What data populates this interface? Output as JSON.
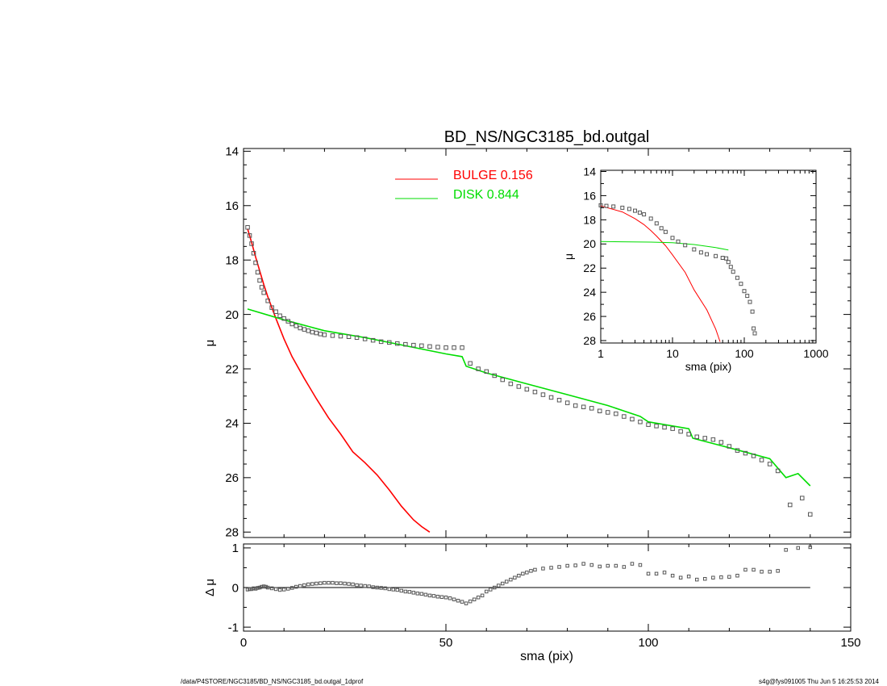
{
  "title": "BD_NS/NGC3185_bd.outgal",
  "footer": {
    "path": "/data/P4STORE/NGC3185/BD_NS/NGC3185_bd.outgal_1dprof",
    "stamp": "s4g@fys091005  Thu Jun  5 16:25:53 2014"
  },
  "colors": {
    "bulge": "#ff0000",
    "disk": "#00dd00",
    "data": "#555555",
    "axes": "#000000"
  },
  "chart_data": [
    {
      "id": "main",
      "type": "line",
      "title": "BD_NS/NGC3185_bd.outgal",
      "ylabel": "μ",
      "xlim": [
        0,
        150
      ],
      "ylim": [
        28.2,
        13.9
      ],
      "y_inverted": true,
      "xticks": [
        0,
        50,
        100,
        150
      ],
      "yticks": [
        14,
        16,
        18,
        20,
        22,
        24,
        26,
        28
      ],
      "legend": {
        "placement": "top-center",
        "entries": [
          {
            "series": "bulge",
            "label": "BULGE  0.156"
          },
          {
            "series": "disk",
            "label": "DISK  0.844"
          }
        ]
      },
      "series": [
        {
          "name": "BULGE",
          "key": "bulge",
          "style": "line",
          "x": [
            1,
            2,
            3,
            4,
            5,
            6,
            8,
            10,
            12,
            15,
            18,
            21,
            24,
            27,
            30,
            33,
            36,
            39,
            42,
            44,
            46
          ],
          "y": [
            16.85,
            17.35,
            17.9,
            18.4,
            18.9,
            19.35,
            20.15,
            20.9,
            21.55,
            22.35,
            23.1,
            23.8,
            24.4,
            25.05,
            25.45,
            25.9,
            26.45,
            27.05,
            27.55,
            27.8,
            28.0
          ]
        },
        {
          "name": "DISK",
          "key": "disk",
          "style": "line",
          "x": [
            1,
            10,
            20,
            30,
            40,
            50,
            54,
            55,
            60,
            70,
            80,
            90,
            98,
            100,
            110,
            111,
            120,
            130,
            134,
            137,
            140
          ],
          "y": [
            19.8,
            20.2,
            20.6,
            20.85,
            21.15,
            21.45,
            21.55,
            21.9,
            22.15,
            22.55,
            22.95,
            23.35,
            23.75,
            23.95,
            24.2,
            24.55,
            24.9,
            25.3,
            26.0,
            25.85,
            26.3
          ]
        },
        {
          "name": "data",
          "key": "data",
          "style": "markers",
          "x": [
            1,
            1.5,
            2,
            2.5,
            3,
            3.5,
            4,
            4.5,
            5,
            6,
            7,
            8,
            9,
            10,
            11,
            12,
            13,
            14,
            15,
            16,
            17,
            18,
            19,
            20,
            22,
            24,
            26,
            28,
            30,
            32,
            34,
            36,
            38,
            40,
            42,
            44,
            46,
            48,
            50,
            52,
            54,
            56,
            58,
            60,
            62,
            64,
            66,
            68,
            70,
            72,
            74,
            76,
            78,
            80,
            82,
            84,
            86,
            88,
            90,
            92,
            94,
            96,
            98,
            100,
            102,
            104,
            106,
            108,
            110,
            112,
            114,
            116,
            118,
            120,
            122,
            124,
            126,
            128,
            130,
            132,
            135,
            138,
            140
          ],
          "y": [
            16.8,
            17.1,
            17.4,
            17.75,
            18.1,
            18.45,
            18.75,
            19.0,
            19.2,
            19.5,
            19.75,
            19.9,
            20.05,
            20.15,
            20.25,
            20.35,
            20.42,
            20.5,
            20.55,
            20.6,
            20.65,
            20.68,
            20.72,
            20.75,
            20.78,
            20.8,
            20.82,
            20.85,
            20.9,
            20.95,
            21.0,
            21.03,
            21.07,
            21.1,
            21.13,
            21.15,
            21.18,
            21.2,
            21.22,
            21.22,
            21.22,
            21.8,
            22.0,
            22.1,
            22.25,
            22.4,
            22.55,
            22.65,
            22.75,
            22.85,
            22.95,
            23.05,
            23.15,
            23.25,
            23.35,
            23.4,
            23.45,
            23.55,
            23.6,
            23.65,
            23.75,
            23.85,
            23.95,
            24.05,
            24.1,
            24.15,
            24.2,
            24.3,
            24.4,
            24.5,
            24.55,
            24.6,
            24.7,
            24.85,
            25.0,
            25.1,
            25.2,
            25.35,
            25.5,
            25.75,
            27.0,
            26.75,
            27.35
          ]
        }
      ]
    },
    {
      "id": "inset",
      "type": "line",
      "xlabel": "sma (pix)",
      "ylabel": "μ",
      "xscale": "log",
      "xlim": [
        1,
        1000
      ],
      "ylim": [
        28.2,
        13.9
      ],
      "y_inverted": true,
      "xticks": [
        1,
        10,
        100,
        1000
      ],
      "yticks": [
        14,
        16,
        18,
        20,
        22,
        24,
        26,
        28
      ],
      "series": [
        {
          "name": "BULGE",
          "key": "bulge",
          "style": "line",
          "x": [
            1,
            2,
            3,
            4,
            5,
            6,
            8,
            10,
            15,
            20,
            30,
            40,
            46
          ],
          "y": [
            16.85,
            17.35,
            17.9,
            18.4,
            18.9,
            19.35,
            20.15,
            20.9,
            22.35,
            23.8,
            25.45,
            27.05,
            28.1
          ]
        },
        {
          "name": "DISK",
          "key": "disk",
          "style": "line",
          "x": [
            1,
            2,
            5,
            10,
            20,
            40,
            60
          ],
          "y": [
            19.8,
            19.82,
            19.85,
            19.9,
            20.05,
            20.3,
            20.5
          ]
        },
        {
          "name": "data",
          "key": "data",
          "style": "markers",
          "x": [
            1,
            1.2,
            1.5,
            2,
            2.5,
            3,
            3.5,
            4,
            5,
            6,
            7,
            8,
            10,
            12,
            15,
            20,
            25,
            30,
            40,
            50,
            56,
            60,
            65,
            70,
            80,
            90,
            100,
            110,
            120,
            130,
            135,
            140
          ],
          "y": [
            16.8,
            16.85,
            16.9,
            17.0,
            17.1,
            17.25,
            17.4,
            17.55,
            17.9,
            18.3,
            18.7,
            19.0,
            19.5,
            19.8,
            20.1,
            20.45,
            20.7,
            20.85,
            21.0,
            21.15,
            21.2,
            21.5,
            21.9,
            22.3,
            22.8,
            23.3,
            23.9,
            24.3,
            24.8,
            25.6,
            27.0,
            27.4
          ]
        }
      ]
    },
    {
      "id": "residual",
      "type": "scatter",
      "xlabel": "sma (pix)",
      "ylabel": "Δ μ",
      "xlim": [
        0,
        150
      ],
      "ylim": [
        -1.1,
        1.1
      ],
      "xticks": [
        0,
        50,
        100,
        150
      ],
      "yticks": [
        -1,
        0,
        1
      ],
      "zero_line": {
        "x": [
          0,
          140
        ],
        "y": 0
      },
      "series": [
        {
          "name": "residual",
          "key": "data",
          "style": "markers",
          "x": [
            1,
            1.5,
            2,
            2.5,
            3,
            3.5,
            4,
            4.5,
            5,
            5.5,
            6,
            7,
            8,
            9,
            10,
            11,
            12,
            13,
            14,
            15,
            16,
            17,
            18,
            19,
            20,
            21,
            22,
            23,
            24,
            25,
            26,
            27,
            28,
            29,
            30,
            31,
            32,
            33,
            34,
            35,
            36,
            37,
            38,
            39,
            40,
            41,
            42,
            43,
            44,
            45,
            46,
            47,
            48,
            49,
            50,
            51,
            52,
            53,
            54,
            55,
            56,
            57,
            58,
            59,
            60,
            61,
            62,
            63,
            64,
            65,
            66,
            67,
            68,
            69,
            70,
            71,
            72,
            74,
            76,
            78,
            80,
            82,
            84,
            86,
            88,
            90,
            92,
            94,
            96,
            98,
            100,
            102,
            104,
            106,
            108,
            110,
            112,
            114,
            116,
            118,
            120,
            122,
            124,
            126,
            128,
            130,
            132,
            134,
            137,
            140
          ],
          "y": [
            -0.05,
            -0.04,
            -0.04,
            -0.02,
            -0.03,
            -0.01,
            0.0,
            0.02,
            0.03,
            0.02,
            0.0,
            -0.02,
            -0.04,
            -0.06,
            -0.05,
            -0.03,
            -0.01,
            0.02,
            0.04,
            0.06,
            0.08,
            0.09,
            0.1,
            0.11,
            0.12,
            0.12,
            0.12,
            0.11,
            0.11,
            0.1,
            0.09,
            0.08,
            0.06,
            0.05,
            0.04,
            0.03,
            0.01,
            0.0,
            -0.01,
            -0.02,
            -0.04,
            -0.05,
            -0.06,
            -0.08,
            -0.1,
            -0.11,
            -0.13,
            -0.15,
            -0.16,
            -0.18,
            -0.2,
            -0.21,
            -0.23,
            -0.24,
            -0.25,
            -0.27,
            -0.3,
            -0.33,
            -0.36,
            -0.4,
            -0.35,
            -0.3,
            -0.25,
            -0.2,
            -0.1,
            -0.05,
            0.0,
            0.05,
            0.1,
            0.15,
            0.2,
            0.25,
            0.3,
            0.35,
            0.38,
            0.42,
            0.45,
            0.48,
            0.5,
            0.52,
            0.55,
            0.56,
            0.6,
            0.57,
            0.53,
            0.55,
            0.55,
            0.52,
            0.6,
            0.57,
            0.35,
            0.35,
            0.38,
            0.3,
            0.25,
            0.28,
            0.2,
            0.22,
            0.25,
            0.26,
            0.27,
            0.3,
            0.45,
            0.45,
            0.4,
            0.4,
            0.42,
            0.95,
            1.0,
            1.02
          ]
        }
      ]
    }
  ],
  "xlabel_shared": "sma (pix)"
}
